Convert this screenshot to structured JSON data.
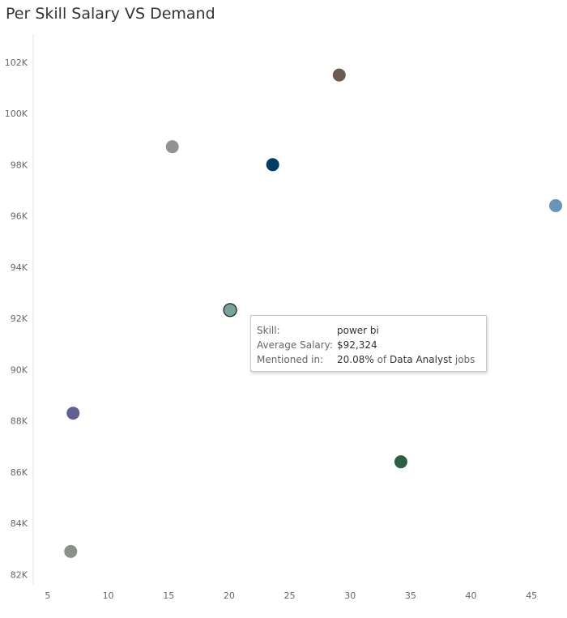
{
  "title": "Per Skill Salary VS Demand",
  "chart_data": {
    "type": "scatter",
    "title": "Per Skill Salary VS Demand",
    "xlabel": "",
    "ylabel": "",
    "xlim": [
      3.8,
      47.8
    ],
    "ylim": [
      81.6,
      103.1
    ],
    "x_ticks": [
      5,
      10,
      15,
      20,
      25,
      30,
      35,
      40,
      45
    ],
    "y_ticks": [
      82,
      84,
      86,
      88,
      90,
      92,
      94,
      96,
      98,
      100,
      102
    ],
    "x_tick_labels": [
      "5",
      "10",
      "15",
      "20",
      "25",
      "30",
      "35",
      "40",
      "45"
    ],
    "y_tick_labels": [
      "82K",
      "84K",
      "86K",
      "88K",
      "90K",
      "92K",
      "94K",
      "96K",
      "98K",
      "100K",
      "102K"
    ],
    "grid": false,
    "points": [
      {
        "x": 29.1,
        "y": 101.5,
        "color": "#6b5a4f"
      },
      {
        "x": 15.3,
        "y": 98.7,
        "color": "#929292"
      },
      {
        "x": 23.6,
        "y": 98.0,
        "color": "#003d66"
      },
      {
        "x": 47.0,
        "y": 96.4,
        "color": "#6b93b5"
      },
      {
        "x": 20.08,
        "y": 92.324,
        "color": "#78a39d",
        "highlighted": true
      },
      {
        "x": 7.1,
        "y": 88.3,
        "color": "#615e92"
      },
      {
        "x": 34.2,
        "y": 86.4,
        "color": "#2d5e48"
      },
      {
        "x": 6.9,
        "y": 82.9,
        "color": "#8a9189"
      }
    ]
  },
  "tooltip": {
    "skill_label": "Skill:",
    "skill_value": "power bi",
    "salary_label": "Average Salary:",
    "salary_value": "$92,324",
    "mentioned_label": "Mentioned in:",
    "mentioned_pct": "20.08%",
    "mentioned_of": "of",
    "mentioned_role": "Data Analyst",
    "mentioned_suffix": "jobs"
  }
}
